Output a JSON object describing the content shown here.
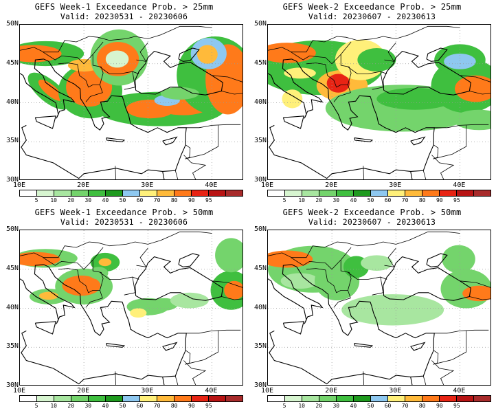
{
  "colorbar": {
    "colors": [
      "#ffffff",
      "#d7f5d0",
      "#a8e6a0",
      "#74d46c",
      "#3fbf3f",
      "#1e9a1e",
      "#8ec8f0",
      "#fff07a",
      "#ffba3a",
      "#ff7a1a",
      "#e82414",
      "#b81414",
      "#a82b2b"
    ],
    "labels": [
      "5",
      "10",
      "20",
      "30",
      "40",
      "50",
      "60",
      "70",
      "80",
      "90",
      "95"
    ]
  },
  "axes": {
    "lat_labels": [
      "50N",
      "45N",
      "40N",
      "35N",
      "30N"
    ],
    "lon_labels": [
      "10E",
      "20E",
      "30E",
      "40E"
    ]
  },
  "panels": [
    {
      "title": "GEFS Week-1 Exceedance Prob. > 25mm",
      "valid": "Valid: 20230531 - 20230606"
    },
    {
      "title": "GEFS Week-2 Exceedance Prob. > 25mm",
      "valid": "Valid: 20230607 - 20230613"
    },
    {
      "title": "GEFS Week-1 Exceedance Prob. > 50mm",
      "valid": "Valid: 20230531 - 20230606"
    },
    {
      "title": "GEFS Week-2 Exceedance Prob. > 50mm",
      "valid": "Valid: 20230607 - 20230613"
    }
  ]
}
